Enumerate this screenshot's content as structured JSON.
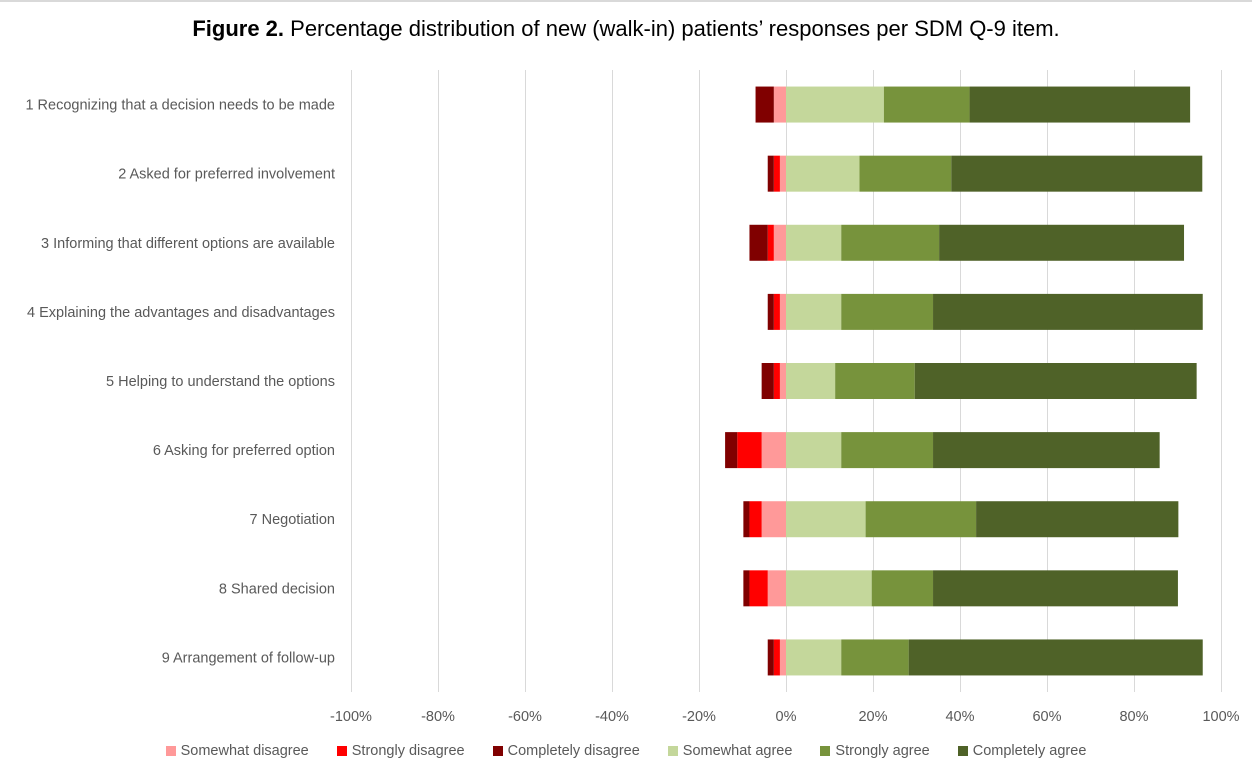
{
  "chart_data": {
    "type": "bar",
    "orientation": "horizontal",
    "stacked": "diverging",
    "title_bold": "Figure 2.",
    "title": "Percentage distribution of new (walk-in) patients’ responses per SDM Q-9 item.",
    "xlabel": "",
    "ylabel": "",
    "xlim": [
      -100,
      100
    ],
    "x_ticks": [
      -100,
      -80,
      -60,
      -40,
      -20,
      0,
      20,
      40,
      60,
      80,
      100
    ],
    "x_tick_labels": [
      "-100%",
      "-80%",
      "-60%",
      "-40%",
      "-20%",
      "0%",
      "20%",
      "40%",
      "60%",
      "80%",
      "100%"
    ],
    "grid": true,
    "legend_position": "bottom",
    "categories": [
      "1 Recognizing that a decision needs to be made",
      "2 Asked for preferred involvement",
      "3 Informing that different options are available",
      "4 Explaining the advantages and disadvantages",
      "5 Helping to understand the options",
      "6 Asking for preferred option",
      "7 Negotiation",
      "8 Shared decision",
      "9 Arrangement of follow-up"
    ],
    "series": [
      {
        "name": "Somewhat disagree",
        "side": "negative",
        "color": "#ff9999",
        "values": [
          2.8,
          1.4,
          2.8,
          1.4,
          1.4,
          5.6,
          5.6,
          4.2,
          1.4
        ]
      },
      {
        "name": "Strongly disagree",
        "side": "negative",
        "color": "#ff0000",
        "values": [
          0.0,
          1.4,
          1.4,
          1.4,
          1.4,
          5.6,
          2.8,
          4.2,
          1.4
        ]
      },
      {
        "name": "Completely disagree",
        "side": "negative",
        "color": "#800000",
        "values": [
          4.2,
          1.4,
          4.2,
          1.4,
          2.8,
          2.8,
          1.4,
          1.4,
          1.4
        ]
      },
      {
        "name": "Somewhat agree",
        "side": "positive",
        "color": "#c4d79b",
        "values": [
          22.5,
          16.9,
          12.7,
          12.7,
          11.3,
          12.7,
          18.3,
          19.7,
          12.7
        ]
      },
      {
        "name": "Strongly agree",
        "side": "positive",
        "color": "#77933c",
        "values": [
          19.7,
          21.1,
          22.5,
          21.1,
          18.3,
          21.1,
          25.4,
          14.1,
          15.5
        ]
      },
      {
        "name": "Completely agree",
        "side": "positive",
        "color": "#4f6228",
        "values": [
          50.7,
          57.7,
          56.3,
          62.0,
          64.8,
          52.1,
          46.5,
          56.3,
          67.6
        ]
      }
    ]
  },
  "colors": {
    "gridline": "#d9d9d9",
    "text": "#595959"
  }
}
